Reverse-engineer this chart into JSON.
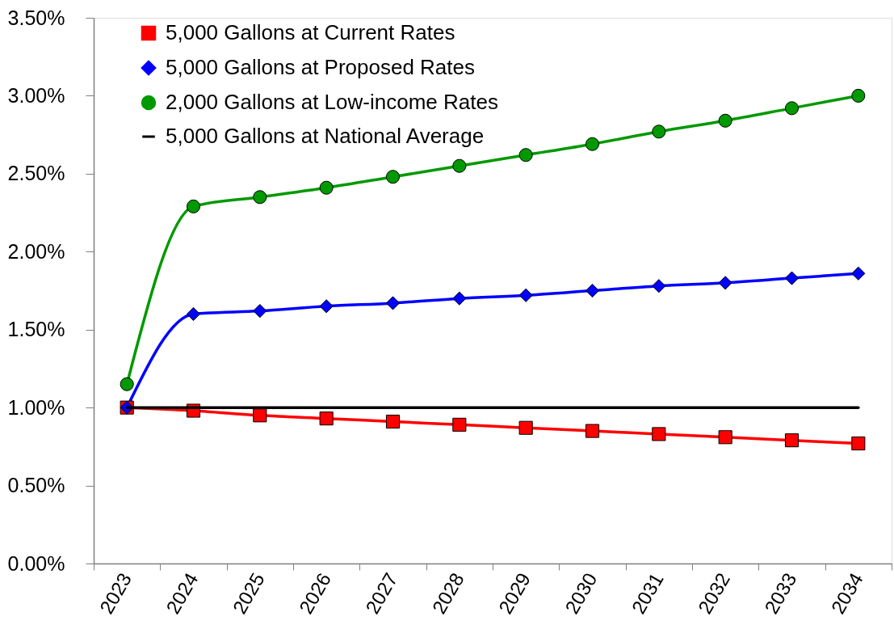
{
  "chart_data": {
    "type": "line",
    "categories": [
      "2023",
      "2024",
      "2025",
      "2026",
      "2027",
      "2028",
      "2029",
      "2030",
      "2031",
      "2032",
      "2033",
      "2034"
    ],
    "ylim": [
      0,
      3.5
    ],
    "yticks": [
      {
        "value": 0,
        "label": "0.00%"
      },
      {
        "value": 0.5,
        "label": "0.50%"
      },
      {
        "value": 1,
        "label": "1.00%"
      },
      {
        "value": 1.5,
        "label": "1.50%"
      },
      {
        "value": 2,
        "label": "2.00%"
      },
      {
        "value": 2.5,
        "label": "2.50%"
      },
      {
        "value": 3,
        "label": "3.00%"
      },
      {
        "value": 3.5,
        "label": "3.50%"
      }
    ],
    "grid": false,
    "legend": "top left",
    "line_style": "solid",
    "series": [
      {
        "name": "5,000 Gallons at Current Rates",
        "color": "#ff0000",
        "marker": "square",
        "values": [
          1.0,
          0.98,
          0.95,
          0.93,
          0.91,
          0.89,
          0.87,
          0.85,
          0.83,
          0.81,
          0.79,
          0.77
        ]
      },
      {
        "name": "5,000 Gallons at Proposed Rates",
        "color": "#0000ff",
        "marker": "diamond",
        "values": [
          1.0,
          1.6,
          1.62,
          1.65,
          1.67,
          1.7,
          1.72,
          1.75,
          1.78,
          1.8,
          1.83,
          1.86
        ]
      },
      {
        "name": "2,000 Gallons at Low-income Rates",
        "color": "#009900",
        "marker": "circle",
        "values": [
          1.15,
          2.29,
          2.35,
          2.41,
          2.48,
          2.55,
          2.62,
          2.69,
          2.77,
          2.84,
          2.92,
          3.0
        ]
      },
      {
        "name": "5,000 Gallons at National Average",
        "color": "#000000",
        "marker": "none",
        "values": [
          1.0,
          1.0,
          1.0,
          1.0,
          1.0,
          1.0,
          1.0,
          1.0,
          1.0,
          1.0,
          1.0,
          1.0
        ]
      }
    ]
  }
}
